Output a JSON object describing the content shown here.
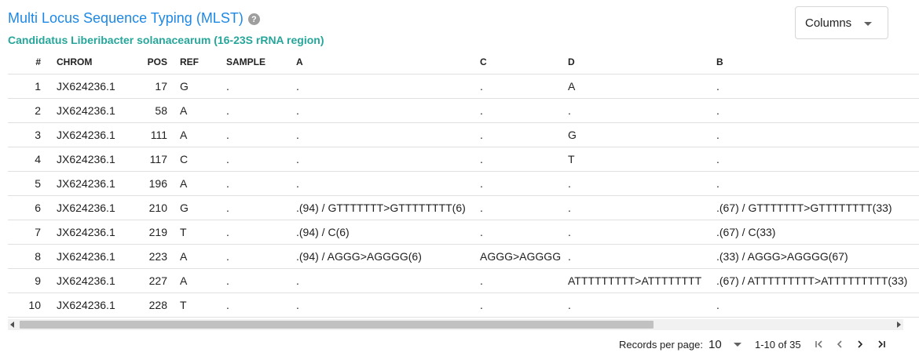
{
  "header": {
    "title": "Multi Locus Sequence Typing (MLST)",
    "help_glyph": "?",
    "subtitle": "Candidatus Liberibacter solanacearum (16-23S rRNA region)",
    "columns_button_label": "Columns"
  },
  "table": {
    "columns": [
      "#",
      "CHROM",
      "POS",
      "REF",
      "SAMPLE",
      "A",
      "C",
      "D",
      "B"
    ],
    "rows": [
      [
        "1",
        "JX624236.1",
        "17",
        "G",
        ".",
        ".",
        ".",
        "A",
        "."
      ],
      [
        "2",
        "JX624236.1",
        "58",
        "A",
        ".",
        ".",
        ".",
        ".",
        "."
      ],
      [
        "3",
        "JX624236.1",
        "111",
        "A",
        ".",
        ".",
        ".",
        "G",
        "."
      ],
      [
        "4",
        "JX624236.1",
        "117",
        "C",
        ".",
        ".",
        ".",
        "T",
        "."
      ],
      [
        "5",
        "JX624236.1",
        "196",
        "A",
        ".",
        ".",
        ".",
        ".",
        "."
      ],
      [
        "6",
        "JX624236.1",
        "210",
        "G",
        ".",
        ".(94) / GTTTTTTT>GTTTTTTTT(6)",
        ".",
        ".",
        ".(67) / GTTTTTTT>GTTTTTTTT(33)"
      ],
      [
        "7",
        "JX624236.1",
        "219",
        "T",
        ".",
        ".(94) / C(6)",
        ".",
        ".",
        ".(67) / C(33)"
      ],
      [
        "8",
        "JX624236.1",
        "223",
        "A",
        ".",
        ".(94) / AGGG>AGGGG(6)",
        "AGGG>AGGGG",
        ".",
        ".(33) / AGGG>AGGGG(67)"
      ],
      [
        "9",
        "JX624236.1",
        "227",
        "A",
        ".",
        ".",
        ".",
        "ATTTTTTTTT>ATTTTTTTT",
        ".(67) / ATTTTTTTTT>ATTTTTTTTT(33)"
      ],
      [
        "10",
        "JX624236.1",
        "228",
        "T",
        ".",
        ".",
        ".",
        ".",
        "."
      ]
    ]
  },
  "pagination": {
    "records_per_page_label": "Records per page:",
    "records_per_page_value": "10",
    "range_text": "1-10 of 35"
  }
}
